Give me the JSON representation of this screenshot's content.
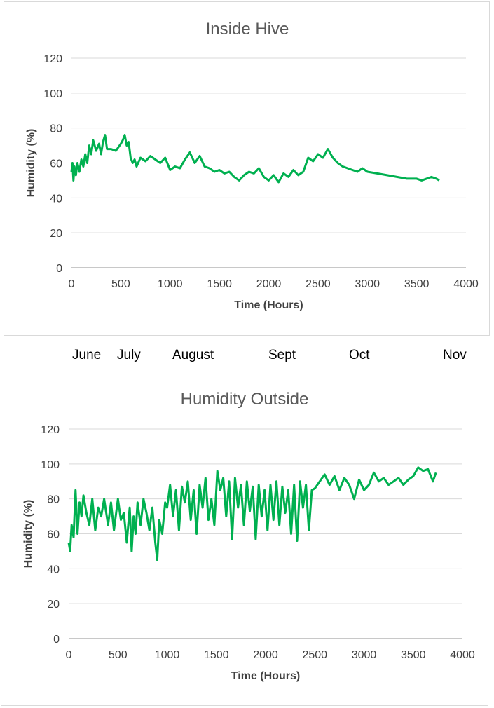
{
  "line_color": "#00b050",
  "gridline_color": "#d9d9d9",
  "months": [
    "June",
    "July",
    "August",
    "Sept",
    "Oct",
    "Nov"
  ],
  "chart_data": [
    {
      "type": "line",
      "title": "Inside Hive",
      "xlabel": "Time (Hours)",
      "ylabel": "Humidity (%)",
      "xlim": [
        0,
        4000
      ],
      "ylim": [
        0,
        120
      ],
      "x_ticks": [
        0,
        500,
        1000,
        1500,
        2000,
        2500,
        3000,
        3500,
        4000
      ],
      "y_ticks": [
        0,
        20,
        40,
        60,
        80,
        100,
        120
      ],
      "grid": true,
      "series": [
        {
          "x": [
            0,
            10,
            20,
            30,
            45,
            60,
            80,
            100,
            120,
            140,
            160,
            180,
            200,
            220,
            250,
            280,
            300,
            320,
            340,
            360,
            380,
            400,
            450,
            500,
            520,
            540,
            560,
            580,
            600,
            620,
            640,
            660,
            700,
            750,
            800,
            850,
            900,
            950,
            1000,
            1050,
            1100,
            1150,
            1200,
            1250,
            1300,
            1350,
            1400,
            1450,
            1500,
            1550,
            1600,
            1650,
            1700,
            1750,
            1800,
            1850,
            1900,
            1950,
            2000,
            2050,
            2100,
            2150,
            2200,
            2250,
            2300,
            2350,
            2400,
            2450,
            2500,
            2550,
            2600,
            2650,
            2700,
            2750,
            2800,
            2850,
            2900,
            2950,
            3000,
            3100,
            3200,
            3300,
            3400,
            3500,
            3550,
            3600,
            3650,
            3700,
            3730
          ],
          "y": [
            55,
            60,
            50,
            58,
            53,
            60,
            55,
            62,
            58,
            65,
            60,
            70,
            65,
            73,
            67,
            71,
            65,
            72,
            76,
            68,
            68,
            68,
            67,
            71,
            73,
            76,
            70,
            72,
            63,
            60,
            62,
            58,
            63,
            61,
            64,
            62,
            60,
            63,
            56,
            58,
            57,
            62,
            66,
            60,
            64,
            58,
            57,
            55,
            56,
            54,
            55,
            52,
            50,
            53,
            55,
            54,
            57,
            52,
            50,
            53,
            49,
            54,
            52,
            56,
            53,
            55,
            63,
            61,
            65,
            63,
            68,
            63,
            60,
            58,
            57,
            56,
            55,
            57,
            55,
            54,
            53,
            52,
            51,
            51,
            50,
            51,
            52,
            51,
            50
          ]
        }
      ]
    },
    {
      "type": "line",
      "title": "Humidity Outside",
      "xlabel": "Time (Hours)",
      "ylabel": "Humidity (%)",
      "xlim": [
        0,
        4000
      ],
      "ylim": [
        0,
        120
      ],
      "x_ticks": [
        0,
        500,
        1000,
        1500,
        2000,
        2500,
        3000,
        3500,
        4000
      ],
      "y_ticks": [
        0,
        20,
        40,
        60,
        80,
        100,
        120
      ],
      "grid": true,
      "series": [
        {
          "x": [
            0,
            15,
            30,
            50,
            70,
            90,
            110,
            130,
            150,
            180,
            210,
            240,
            270,
            300,
            330,
            360,
            400,
            430,
            460,
            500,
            530,
            560,
            590,
            620,
            640,
            660,
            680,
            700,
            730,
            760,
            790,
            820,
            850,
            880,
            900,
            920,
            950,
            980,
            1000,
            1030,
            1060,
            1090,
            1120,
            1150,
            1180,
            1210,
            1240,
            1270,
            1300,
            1330,
            1360,
            1390,
            1420,
            1450,
            1480,
            1510,
            1540,
            1570,
            1600,
            1630,
            1660,
            1690,
            1720,
            1750,
            1780,
            1810,
            1840,
            1870,
            1900,
            1930,
            1960,
            1990,
            2020,
            2050,
            2080,
            2110,
            2140,
            2170,
            2200,
            2230,
            2260,
            2290,
            2320,
            2350,
            2380,
            2410,
            2440,
            2470,
            2500,
            2550,
            2600,
            2650,
            2700,
            2750,
            2800,
            2850,
            2900,
            2950,
            3000,
            3050,
            3100,
            3150,
            3200,
            3250,
            3300,
            3350,
            3400,
            3450,
            3500,
            3550,
            3600,
            3650,
            3700,
            3730
          ],
          "y": [
            55,
            50,
            65,
            58,
            85,
            60,
            78,
            70,
            82,
            72,
            65,
            80,
            62,
            75,
            70,
            80,
            65,
            78,
            62,
            80,
            68,
            72,
            55,
            75,
            50,
            70,
            60,
            78,
            65,
            80,
            72,
            62,
            75,
            55,
            45,
            68,
            60,
            78,
            75,
            88,
            70,
            85,
            62,
            87,
            78,
            90,
            68,
            85,
            60,
            88,
            75,
            92,
            68,
            80,
            65,
            96,
            85,
            92,
            70,
            90,
            57,
            92,
            75,
            88,
            65,
            90,
            73,
            87,
            57,
            88,
            70,
            85,
            62,
            88,
            68,
            90,
            65,
            87,
            72,
            85,
            60,
            88,
            56,
            90,
            75,
            88,
            62,
            85,
            86,
            90,
            94,
            88,
            93,
            85,
            92,
            88,
            80,
            91,
            85,
            88,
            95,
            90,
            92,
            88,
            90,
            92,
            88,
            91,
            93,
            98,
            96,
            97,
            90,
            95
          ]
        }
      ]
    }
  ]
}
